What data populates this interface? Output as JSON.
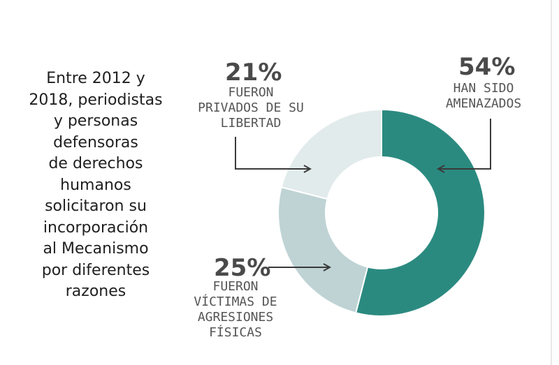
{
  "intro": {
    "lines": [
      "Entre 2012 y",
      "2018, periodistas",
      "y personas",
      "defensoras",
      "de derechos",
      "humanos",
      "solicitaron su",
      "incorporación",
      "al Mecanismo",
      "por diferentes",
      "razones"
    ]
  },
  "chart_data": {
    "type": "pie",
    "donut": true,
    "slices": [
      {
        "label_lines": [
          "HAN SIDO",
          "AMENAZADOS"
        ],
        "value": 54,
        "value_label": "54%",
        "color": "#2b8a80"
      },
      {
        "label_lines": [
          "FUERON",
          "VÍCTIMAS DE",
          "AGRESIONES",
          "FÍSICAS"
        ],
        "value": 25,
        "value_label": "25%",
        "color": "#bfd3d4"
      },
      {
        "label_lines": [
          "FUERON",
          "PRIVADOS DE SU",
          "LIBERTAD"
        ],
        "value": 21,
        "value_label": "21%",
        "color": "#e2ebeb"
      }
    ],
    "start_angle_deg": 0,
    "direction": "clockwise",
    "colors": {
      "text": "#4a4a4a",
      "arrow": "#3a3a3a",
      "segment_border": "#ffffff"
    }
  }
}
